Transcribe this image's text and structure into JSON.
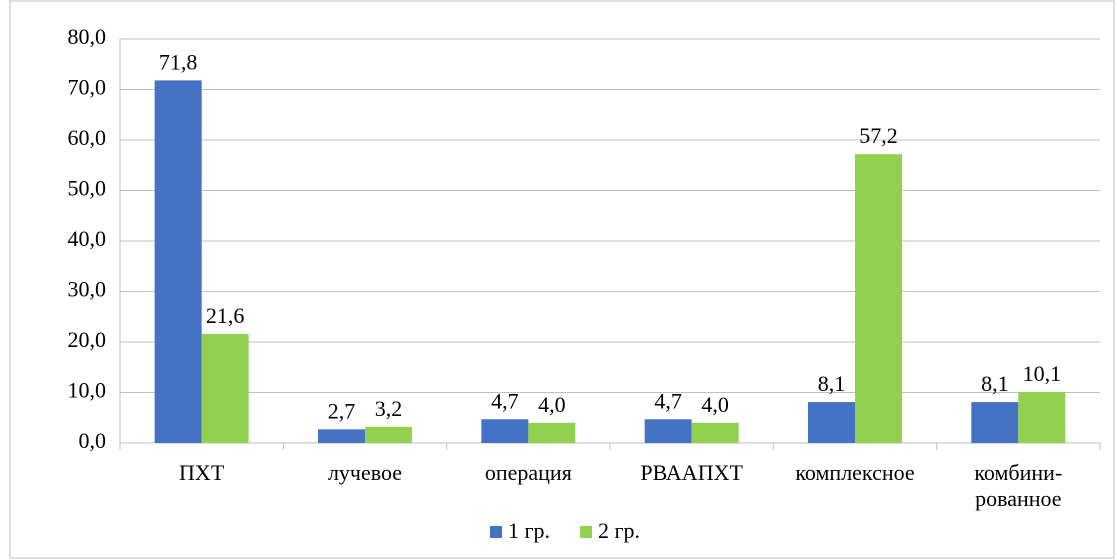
{
  "chart_data": {
    "type": "bar",
    "categories": [
      "ПХТ",
      "лучевое",
      "операция",
      "РВААПХТ",
      "комплексное",
      "комбини-\nрованное"
    ],
    "series": [
      {
        "name": "1 гр.",
        "color": "#4472c4",
        "values": [
          71.8,
          2.7,
          4.7,
          4.7,
          8.1,
          8.1
        ],
        "value_labels": [
          "71,8",
          "2,7",
          "4,7",
          "4,7",
          "8,1",
          "8,1"
        ]
      },
      {
        "name": "2 гр.",
        "color": "#92d050",
        "values": [
          21.6,
          3.2,
          4.0,
          4.0,
          57.2,
          10.1
        ],
        "value_labels": [
          "21,6",
          "3,2",
          "4,0",
          "4,0",
          "57,2",
          "10,1"
        ]
      }
    ],
    "ylim": [
      0,
      80
    ],
    "yticks": [
      {
        "value": 0,
        "label": "0,0"
      },
      {
        "value": 10,
        "label": "10,0"
      },
      {
        "value": 20,
        "label": "20,0"
      },
      {
        "value": 30,
        "label": "30,0"
      },
      {
        "value": 40,
        "label": "40,0"
      },
      {
        "value": 50,
        "label": "50,0"
      },
      {
        "value": 60,
        "label": "60,0"
      },
      {
        "value": 70,
        "label": "70,0"
      },
      {
        "value": 80,
        "label": "80,0"
      }
    ],
    "grid": true,
    "legend": "bottom"
  }
}
